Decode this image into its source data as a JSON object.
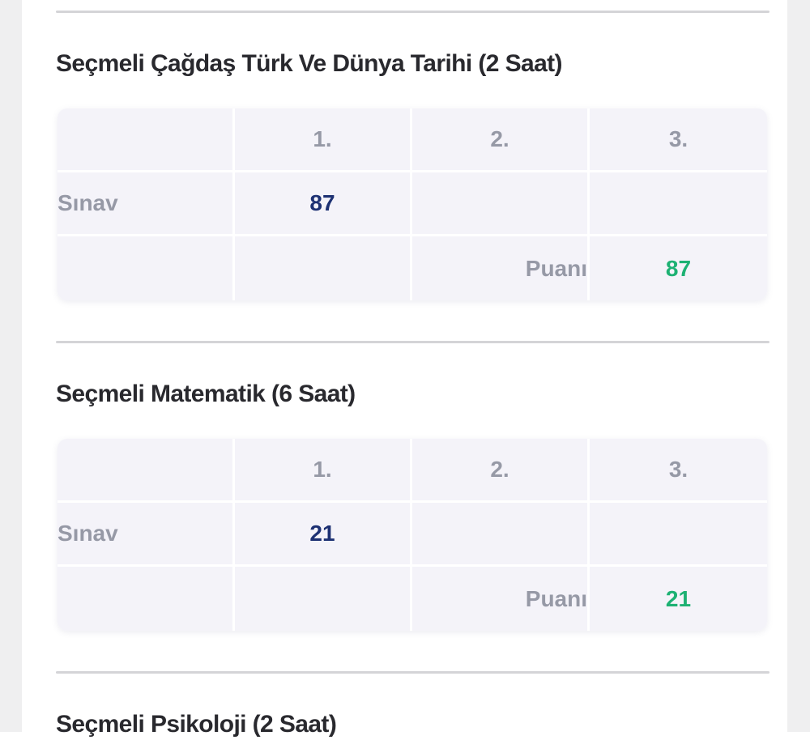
{
  "colors": {
    "exam_score_navy": "#1d3173",
    "total_score_green": "#1db173",
    "muted_gray_text": "#9699a6",
    "heading_text": "#29292e",
    "divider_gray": "#d4d4d7",
    "table_cell_bg": "#f4f3f9",
    "page_gutter_bg": "#efeff0"
  },
  "sections": [
    {
      "title": "Seçmeli Çağdaş Türk Ve Dünya Tarihi (2 Saat)",
      "table": {
        "col_headers": [
          "1.",
          "2.",
          "3."
        ],
        "row_label": "Sınav",
        "exams": [
          "87",
          "",
          ""
        ],
        "score_label": "Puanı",
        "score_value": "87"
      }
    },
    {
      "title": "Seçmeli Matematik (6 Saat)",
      "table": {
        "col_headers": [
          "1.",
          "2.",
          "3."
        ],
        "row_label": "Sınav",
        "exams": [
          "21",
          "",
          ""
        ],
        "score_label": "Puanı",
        "score_value": "21"
      }
    },
    {
      "title": "Seçmeli Psikoloji (2 Saat)"
    }
  ]
}
